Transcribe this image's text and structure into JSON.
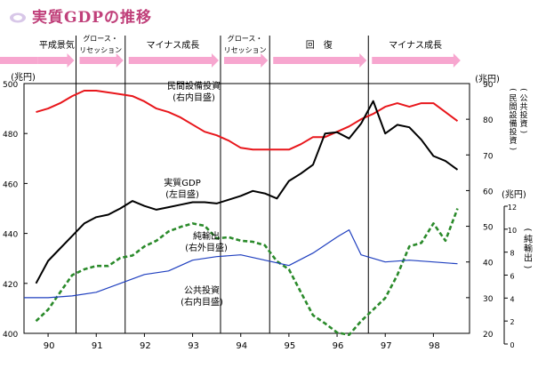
{
  "header": {
    "title": "実質GDPの推移"
  },
  "colors": {
    "title": "#c0407a",
    "arrow": "#f7a6cf",
    "gdp": "#000000",
    "private_investment": "#e8161b",
    "net_exports": "#2a8a2a",
    "public_investment": "#1f3fbf"
  },
  "chart_data": {
    "type": "line",
    "phases": [
      {
        "label": "平成景気",
        "from": 1989.78,
        "to": 1990.58
      },
      {
        "label": "グロース・\nリセッション",
        "from": 1990.58,
        "to": 1991.6
      },
      {
        "label": "マイナス成長",
        "from": 1991.6,
        "to": 1993.58
      },
      {
        "label": "グロース・\nリセッション",
        "from": 1993.58,
        "to": 1994.6
      },
      {
        "label": "回　復",
        "from": 1994.6,
        "to": 1996.65
      },
      {
        "label": "マイナス成長",
        "from": 1996.65,
        "to": 1998.6
      }
    ],
    "phase_boundaries": [
      1990.58,
      1991.6,
      1993.58,
      1994.6,
      1996.65
    ],
    "x_axis": {
      "min": 1989.5,
      "max": 1998.75,
      "ticks": [
        1990,
        1991,
        1992,
        1993,
        1994,
        1995,
        1996,
        1997,
        1998
      ],
      "tick_labels": [
        "90",
        "91",
        "92",
        "93",
        "94",
        "95",
        "96",
        "97",
        "98"
      ]
    },
    "left_axis": {
      "label": "(兆円)",
      "min": 400,
      "max": 500,
      "ticks": [
        400,
        420,
        440,
        460,
        480,
        500
      ],
      "tick_labels": [
        "400",
        "420",
        "440",
        "460",
        "480",
        "500"
      ]
    },
    "right_axis": {
      "label": "(兆円)",
      "label_vertical": "(公共投資)\n(民間設備投資)",
      "min": 20,
      "max": 90,
      "ticks": [
        20,
        30,
        40,
        50,
        60,
        70,
        80,
        90
      ],
      "tick_labels": [
        "20",
        "30",
        "40",
        "50",
        "60",
        "70",
        "80",
        "90"
      ]
    },
    "net_axis": {
      "label": "(兆円)",
      "label_vertical": "(純輸出)",
      "min": 0,
      "max": 12,
      "ticks": [
        0,
        2,
        4,
        6,
        8,
        10,
        12
      ],
      "tick_labels": [
        "0",
        "2",
        "4",
        "6",
        "8",
        "10",
        "12"
      ]
    },
    "series": [
      {
        "name": "民間設備投資\n(右内目盛)",
        "axis": "right",
        "style": "solid",
        "x": [
          1989.75,
          1990.0,
          1990.25,
          1990.5,
          1990.75,
          1991.0,
          1991.25,
          1991.5,
          1991.75,
          1992.0,
          1992.25,
          1992.5,
          1992.75,
          1993.0,
          1993.25,
          1993.5,
          1993.75,
          1994.0,
          1994.25,
          1994.5,
          1994.75,
          1995.0,
          1995.25,
          1995.5,
          1995.75,
          1996.0,
          1996.25,
          1996.5,
          1996.75,
          1997.0,
          1997.25,
          1997.5,
          1997.75,
          1998.0,
          1998.25,
          1998.5
        ],
        "y": [
          82.0,
          83.0,
          84.5,
          86.5,
          88.0,
          88.0,
          87.5,
          87.0,
          86.5,
          85.0,
          83.0,
          82.0,
          80.5,
          78.5,
          76.5,
          75.5,
          74.0,
          72.0,
          71.5,
          71.5,
          71.5,
          71.5,
          73.0,
          75.0,
          75.0,
          76.5,
          78.0,
          80.0,
          81.5,
          83.5,
          84.5,
          83.5,
          84.5,
          84.5,
          82.0,
          79.5
        ]
      },
      {
        "name": "実質GDP\n(左目盛)",
        "axis": "left",
        "style": "solid",
        "x": [
          1989.75,
          1990.0,
          1990.25,
          1990.5,
          1990.75,
          1991.0,
          1991.25,
          1991.5,
          1991.75,
          1992.0,
          1992.25,
          1992.5,
          1992.75,
          1993.0,
          1993.25,
          1993.5,
          1993.75,
          1994.0,
          1994.25,
          1994.5,
          1994.75,
          1995.0,
          1995.25,
          1995.5,
          1995.75,
          1996.0,
          1996.25,
          1996.5,
          1996.75,
          1997.0,
          1997.25,
          1997.5,
          1997.75,
          1998.0,
          1998.25,
          1998.5
        ],
        "y": [
          420.0,
          429.0,
          434.0,
          439.0,
          444.0,
          446.5,
          447.5,
          450.0,
          453.0,
          451.0,
          449.5,
          450.5,
          451.5,
          452.5,
          452.5,
          452.0,
          453.5,
          455.0,
          457.0,
          456.0,
          454.0,
          461.0,
          464.0,
          467.5,
          480.0,
          480.5,
          478.0,
          484.0,
          493.0,
          480.0,
          483.5,
          482.5,
          477.5,
          471.0,
          469.0,
          465.5
        ]
      },
      {
        "name": "純輸出\n(右外目盛)",
        "axis": "net",
        "style": "dashed",
        "x": [
          1989.75,
          1990.0,
          1990.25,
          1990.5,
          1990.75,
          1991.0,
          1991.25,
          1991.5,
          1991.75,
          1992.0,
          1992.25,
          1992.5,
          1992.75,
          1993.0,
          1993.25,
          1993.5,
          1993.75,
          1994.0,
          1994.25,
          1994.5,
          1994.75,
          1995.0,
          1995.25,
          1995.5,
          1995.75,
          1996.0,
          1996.25,
          1996.5,
          1996.75,
          1997.0,
          1997.25,
          1997.5,
          1997.75,
          1998.0,
          1998.25,
          1998.5
        ],
        "y": [
          2.0,
          3.0,
          4.5,
          6.0,
          6.5,
          6.8,
          6.8,
          7.5,
          7.7,
          8.5,
          9.0,
          9.8,
          10.2,
          10.5,
          10.3,
          9.2,
          9.3,
          9.0,
          8.9,
          8.6,
          7.2,
          6.5,
          4.5,
          2.5,
          1.8,
          1.0,
          0.8,
          2.0,
          3.0,
          4.0,
          6.0,
          8.5,
          8.8,
          10.5,
          9.0,
          11.8
        ]
      },
      {
        "name": "公共投資\n(右内目盛)",
        "axis": "right",
        "style": "solid",
        "x": [
          1989.5,
          1990.0,
          1990.5,
          1991.0,
          1991.5,
          1992.0,
          1992.5,
          1993.0,
          1993.5,
          1994.0,
          1994.5,
          1995.0,
          1995.5,
          1996.0,
          1996.25,
          1996.5,
          1997.0,
          1997.5,
          1998.0,
          1998.5
        ],
        "y": [
          30.0,
          30.0,
          30.5,
          31.5,
          34.0,
          36.5,
          37.5,
          40.5,
          41.5,
          42.0,
          40.5,
          39.0,
          42.5,
          47.0,
          49.0,
          42.0,
          40.0,
          40.5,
          40.0,
          39.5
        ]
      }
    ]
  }
}
